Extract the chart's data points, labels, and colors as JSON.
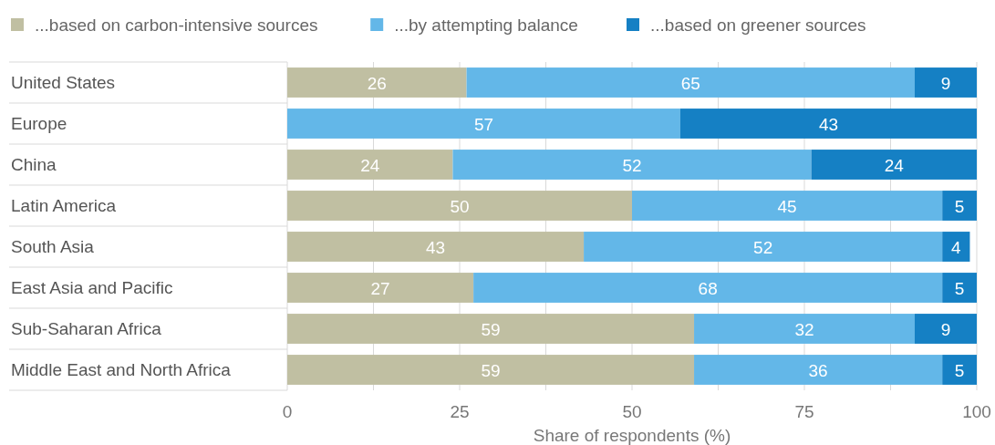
{
  "chart_data": {
    "type": "bar",
    "orientation": "horizontal",
    "stacked": true,
    "xlabel": "Share of respondents (%)",
    "categories": [
      "United States",
      "Europe",
      "China",
      "Latin America",
      "South Asia",
      "East Asia and Pacific",
      "Sub-Saharan Africa",
      "Middle East and North Africa"
    ],
    "series": [
      {
        "name": "...based on carbon-intensive sources",
        "color": "#c0bfa2",
        "values": [
          26,
          null,
          24,
          50,
          43,
          27,
          59,
          59
        ]
      },
      {
        "name": "...by attempting balance",
        "color": "#63b7e8",
        "values": [
          65,
          57,
          52,
          45,
          52,
          68,
          32,
          36
        ]
      },
      {
        "name": "...based on greener sources",
        "color": "#1580c4",
        "values": [
          9,
          43,
          24,
          5,
          4,
          5,
          9,
          5
        ]
      }
    ],
    "xlim": [
      0,
      100
    ],
    "xticks": [
      0,
      {
        "value": 12.5,
        "label": null
      },
      25,
      {
        "value": 37.5,
        "label": null
      },
      50,
      {
        "value": 62.5,
        "label": null
      },
      75,
      {
        "value": 87.5,
        "label": null
      },
      100
    ],
    "grid": "x",
    "legend": "top left",
    "data_labels": true
  }
}
